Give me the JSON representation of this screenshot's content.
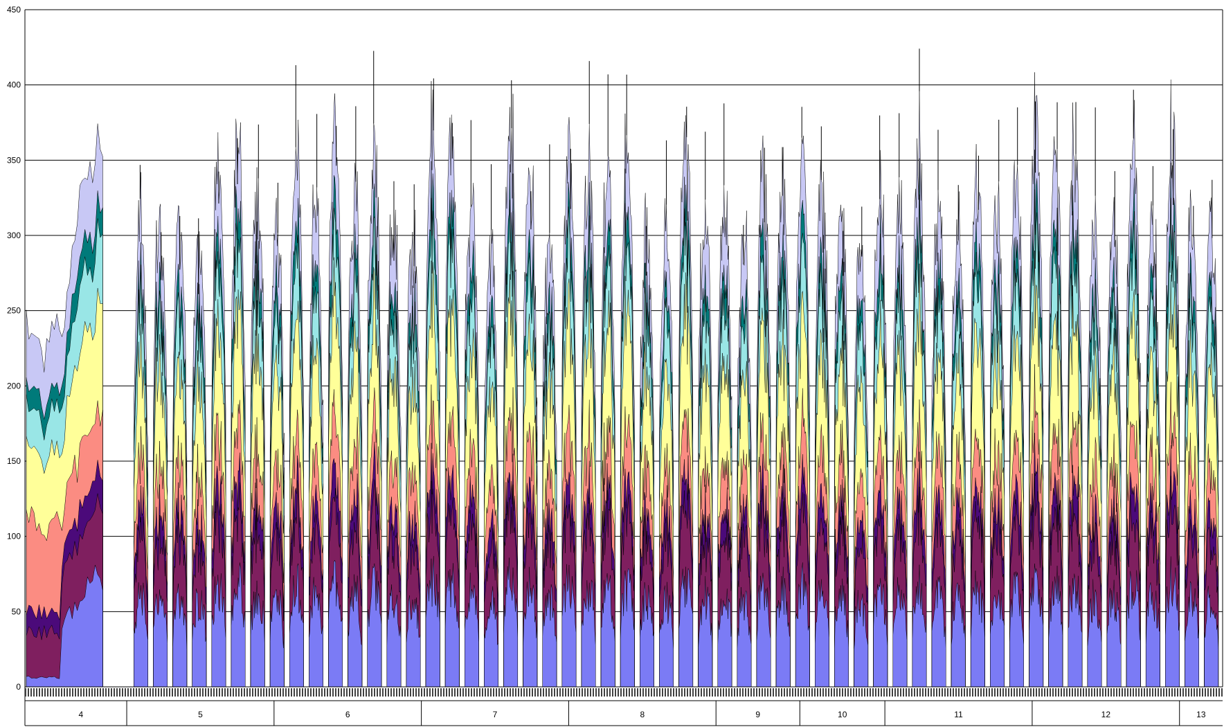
{
  "chart_data": {
    "type": "area",
    "stacked": true,
    "title": "",
    "xlabel": "",
    "ylabel": "",
    "ylim": [
      0,
      450
    ],
    "y_ticks": [
      0,
      50,
      100,
      150,
      200,
      250,
      300,
      350,
      400,
      450
    ],
    "y_tick_labels": [
      "0",
      "50",
      "100",
      "150",
      "200",
      "250",
      "300",
      "350",
      "400",
      "450"
    ],
    "grid": "horizontal",
    "legend": "none",
    "x_groups": [
      {
        "label": "4",
        "span": 0.085
      },
      {
        "label": "5",
        "span": 0.123
      },
      {
        "label": "6",
        "span": 0.123
      },
      {
        "label": "7",
        "span": 0.123
      },
      {
        "label": "8",
        "span": 0.123
      },
      {
        "label": "9",
        "span": 0.07
      },
      {
        "label": "10",
        "span": 0.071
      },
      {
        "label": "11",
        "span": 0.123
      },
      {
        "label": "12",
        "span": 0.123
      },
      {
        "label": "13",
        "span": 0.036
      }
    ],
    "period_count": 56,
    "typical_period_peak": 340,
    "layers": [
      {
        "color": "#7b7bf5",
        "typical_value": 65
      },
      {
        "color": "#7f1f5f",
        "typical_value": 45
      },
      {
        "color": "#4b0a7a",
        "typical_value": 20
      },
      {
        "color": "#fb8c82",
        "typical_value": 35
      },
      {
        "color": "#ffff99",
        "typical_value": 70
      },
      {
        "color": "#99e6e6",
        "typical_value": 40
      },
      {
        "color": "#007a7a",
        "typical_value": 20
      },
      {
        "color": "#c8c8f5",
        "typical_value": 45
      }
    ]
  }
}
